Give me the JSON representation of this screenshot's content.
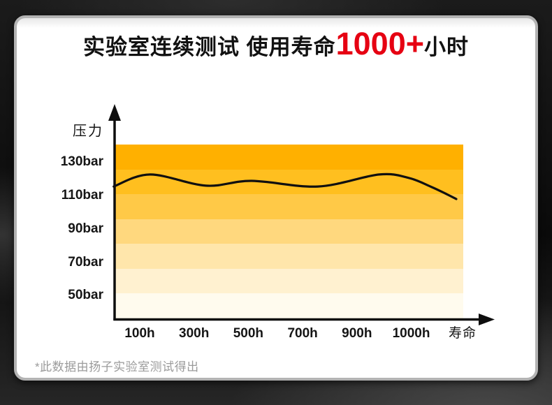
{
  "page": {
    "title": {
      "prefix": "实验室连续测试 使用寿命",
      "highlight": "1000+",
      "suffix": "小时",
      "highlight_color": "#e60012"
    },
    "footnote": "*此数据由扬子实验室测试得出"
  },
  "chart_data": {
    "type": "line",
    "title": "实验室连续测试 使用寿命1000+小时",
    "y_axis": {
      "label": "压力",
      "unit": "bar",
      "tick_labels": [
        "130bar",
        "110bar",
        "90bar",
        "70bar",
        "50bar"
      ],
      "tick_values": [
        130,
        110,
        90,
        70,
        50
      ]
    },
    "x_axis": {
      "label": "寿命",
      "tick_labels": [
        "100h",
        "300h",
        "500h",
        "700h",
        "900h",
        "1000h"
      ]
    },
    "band_colors_top_to_bottom": [
      "#ffb000",
      "#ffbf1f",
      "#ffc947",
      "#ffd87e",
      "#ffe6ab",
      "#fff1d0",
      "#fffbee"
    ],
    "line_color": "#101010",
    "series": [
      {
        "name": "压力",
        "unit": "bar",
        "note_x_scale": "x_tick_index 0 = 100h tick, 5 = 1000h tick",
        "points": [
          {
            "x_tick_index": -0.48,
            "pressure_bar": 115.4
          },
          {
            "x_tick_index": 0.19,
            "pressure_bar": 122.6
          },
          {
            "x_tick_index": 1.22,
            "pressure_bar": 115.9
          },
          {
            "x_tick_index": 2.06,
            "pressure_bar": 118.8
          },
          {
            "x_tick_index": 3.28,
            "pressure_bar": 115.4
          },
          {
            "x_tick_index": 4.41,
            "pressure_bar": 122.6
          },
          {
            "x_tick_index": 4.96,
            "pressure_bar": 120.5
          },
          {
            "x_tick_index": 5.37,
            "pressure_bar": 115.2
          },
          {
            "x_tick_index": 5.66,
            "pressure_bar": 110.7
          },
          {
            "x_tick_index": 5.83,
            "pressure_bar": 107.9
          }
        ]
      }
    ]
  }
}
